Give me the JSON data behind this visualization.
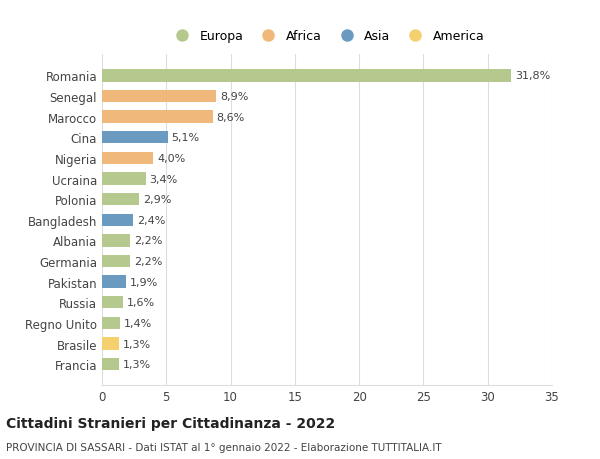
{
  "countries": [
    "Francia",
    "Brasile",
    "Regno Unito",
    "Russia",
    "Pakistan",
    "Germania",
    "Albania",
    "Bangladesh",
    "Polonia",
    "Ucraina",
    "Nigeria",
    "Cina",
    "Marocco",
    "Senegal",
    "Romania"
  ],
  "values": [
    1.3,
    1.3,
    1.4,
    1.6,
    1.9,
    2.2,
    2.2,
    2.4,
    2.9,
    3.4,
    4.0,
    5.1,
    8.6,
    8.9,
    31.8
  ],
  "labels": [
    "1,3%",
    "1,3%",
    "1,4%",
    "1,6%",
    "1,9%",
    "2,2%",
    "2,2%",
    "2,4%",
    "2,9%",
    "3,4%",
    "4,0%",
    "5,1%",
    "8,6%",
    "8,9%",
    "31,8%"
  ],
  "continents": [
    "Europa",
    "America",
    "Europa",
    "Europa",
    "Asia",
    "Europa",
    "Europa",
    "Asia",
    "Europa",
    "Europa",
    "Africa",
    "Asia",
    "Africa",
    "Africa",
    "Europa"
  ],
  "colors": {
    "Europa": "#b5c98e",
    "Africa": "#f0b87a",
    "Asia": "#6a9abf",
    "America": "#f5d06e"
  },
  "legend_order": [
    "Europa",
    "Africa",
    "Asia",
    "America"
  ],
  "title": "Cittadini Stranieri per Cittadinanza - 2022",
  "subtitle": "PROVINCIA DI SASSARI - Dati ISTAT al 1° gennaio 2022 - Elaborazione TUTTITALIA.IT",
  "xlim": [
    0,
    35
  ],
  "xticks": [
    0,
    5,
    10,
    15,
    20,
    25,
    30,
    35
  ],
  "background_color": "#ffffff",
  "grid_color": "#dddddd"
}
